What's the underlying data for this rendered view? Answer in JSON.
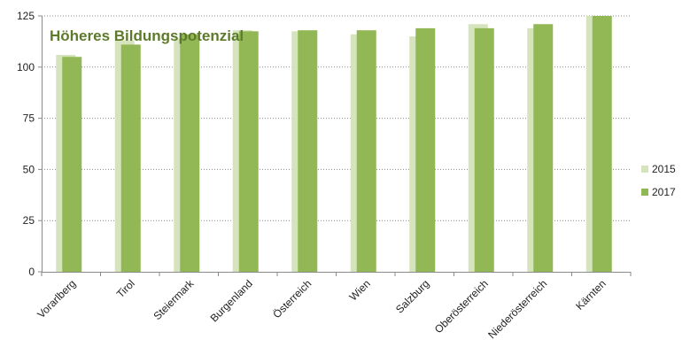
{
  "chart_data": {
    "type": "bar",
    "title": "Höheres Bildungspotenzial",
    "categories": [
      "Vorarlberg",
      "Tirol",
      "Steiermark",
      "Burgenland",
      "Österreich",
      "Wien",
      "Salzburg",
      "Oberösterreich",
      "Niederösterreich",
      "Kärnten"
    ],
    "series": [
      {
        "name": "2015",
        "color": "#d6e4bd",
        "values": [
          106,
          113,
          114,
          118,
          117.5,
          116,
          115,
          121,
          119,
          125
        ]
      },
      {
        "name": "2017",
        "color": "#92b755",
        "values": [
          105,
          111,
          116,
          117.5,
          118,
          118,
          119,
          119,
          121,
          125
        ]
      }
    ],
    "ylim": [
      0,
      125
    ],
    "yticks": [
      0,
      25,
      50,
      75,
      100,
      125
    ],
    "grid": true,
    "legend_position": "right"
  }
}
